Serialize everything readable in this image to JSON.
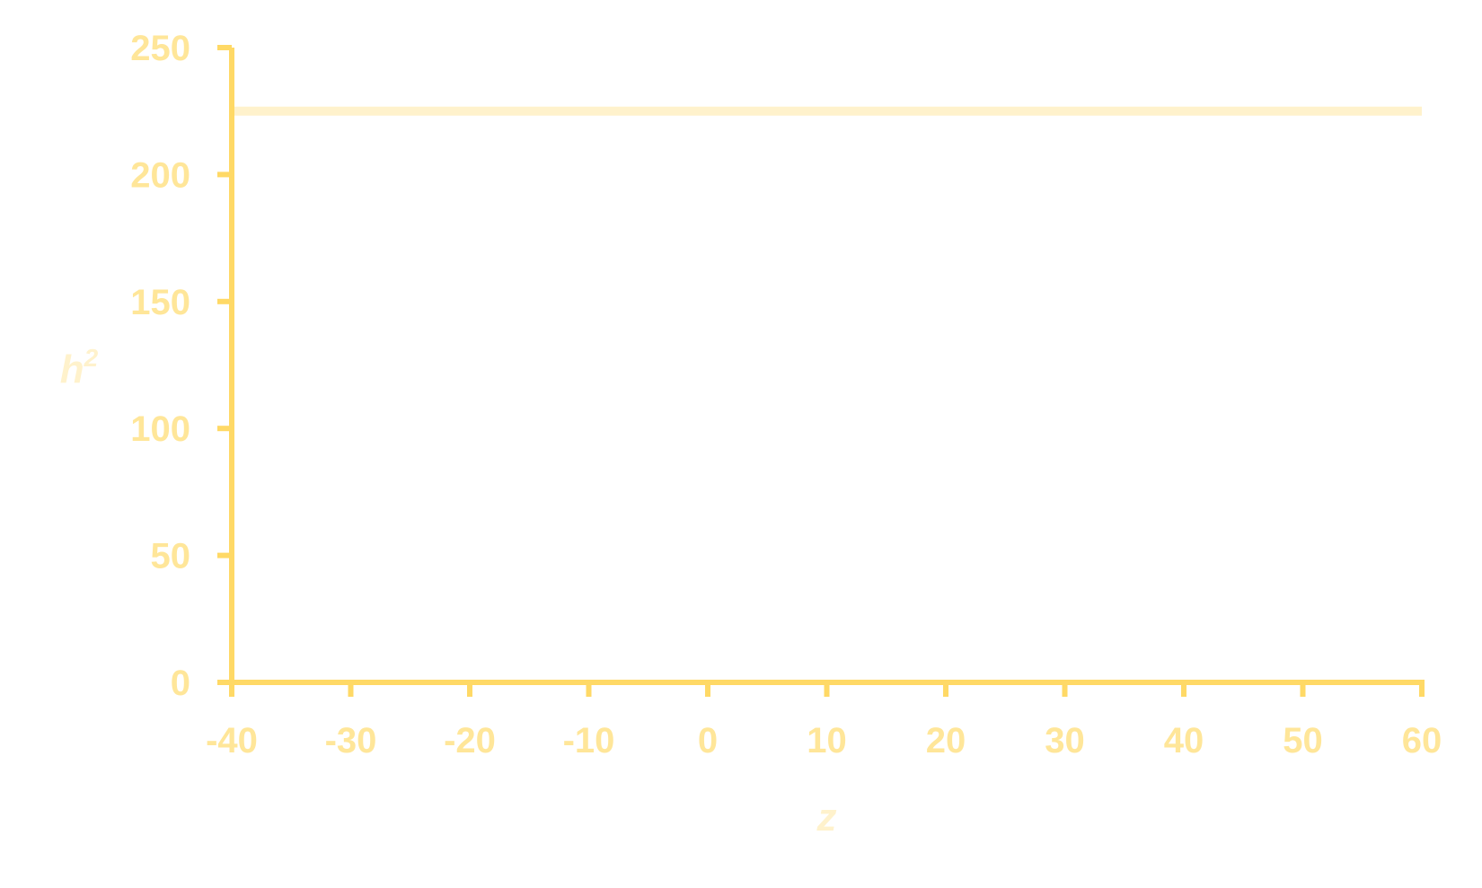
{
  "chart_data": {
    "type": "line",
    "title": "",
    "xlabel": "z",
    "ylabel": "h",
    "ylabel_superscript": "2",
    "xlim": [
      -40,
      60
    ],
    "ylim": [
      0,
      250
    ],
    "x_ticks": [
      -40,
      -30,
      -20,
      -10,
      0,
      10,
      20,
      30,
      40,
      50,
      60
    ],
    "y_ticks": [
      0,
      50,
      100,
      150,
      200,
      250
    ],
    "grid": false,
    "legend": false,
    "series": [
      {
        "x": [
          -40,
          60
        ],
        "values": [
          225,
          225
        ]
      }
    ],
    "colors": {
      "axis": "#FFD966",
      "tick_label": "#FFE699",
      "axis_title": "#FFF2CC",
      "series_line": "#FFF2CC"
    }
  }
}
